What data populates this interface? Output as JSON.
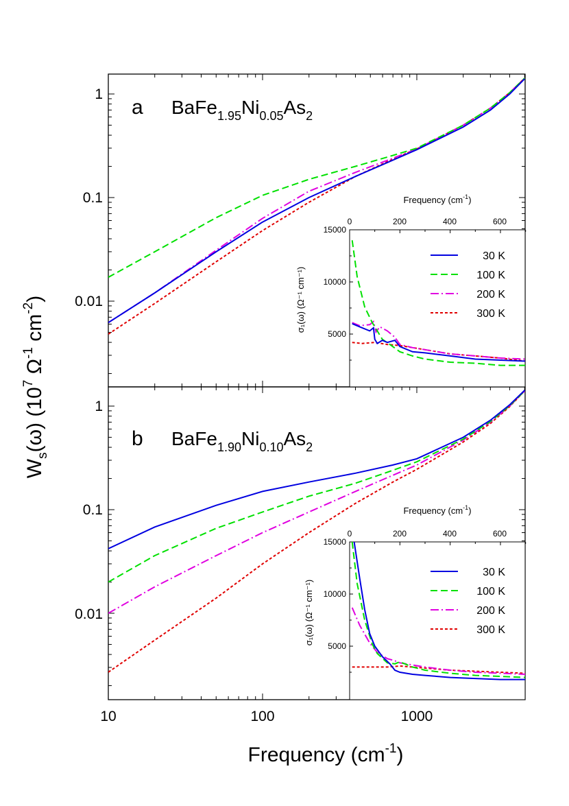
{
  "figure": {
    "xlabel": "Frequency (cm",
    "xlabel_sup": "-1",
    "xlabel_end": ")",
    "ylabel_parts": [
      "W",
      "s",
      "(ω) (10",
      "7",
      " Ω",
      "-1",
      " cm",
      "-2",
      ")"
    ],
    "xticks": [
      "10",
      "100",
      "1000"
    ],
    "yticks": [
      "0.01",
      "0.1",
      "1"
    ]
  },
  "legend": [
    {
      "label": "30 K",
      "color": "#0000e0",
      "dash": "solid"
    },
    {
      "label": "100 K",
      "color": "#00e000",
      "dash": "dashed"
    },
    {
      "label": "200 K",
      "color": "#e000e0",
      "dash": "dashdot"
    },
    {
      "label": "300 K",
      "color": "#e00000",
      "dash": "dotted"
    }
  ],
  "panels": [
    {
      "letter": "a",
      "formula": [
        "BaFe",
        "1.95",
        "Ni",
        "0.05",
        "As",
        "2"
      ],
      "inset": {
        "xlabel": "Frequency (cm",
        "xlabel_sup": "-1",
        "xlabel_end": ")",
        "ylabel": "σ₁(ω) (Ω⁻¹ cm⁻¹)",
        "xticks": [
          "0",
          "200",
          "400",
          "600"
        ],
        "yticks": [
          "5000",
          "10000",
          "15000"
        ]
      }
    },
    {
      "letter": "b",
      "formula": [
        "BaFe",
        "1.90",
        "Ni",
        "0.10",
        "As",
        "2"
      ],
      "inset": {
        "xlabel": "Frequency (cm",
        "xlabel_sup": "-1",
        "xlabel_end": ")",
        "ylabel": "σ₁(ω) (Ω⁻¹ cm⁻¹)",
        "xticks": [
          "0",
          "200",
          "400",
          "600"
        ],
        "yticks": [
          "5000",
          "10000",
          "15000"
        ]
      }
    }
  ],
  "chart_data": [
    {
      "type": "line",
      "panel": "a",
      "title": "BaFe1.95Ni0.05As2",
      "xlabel": "Frequency (cm-1)",
      "ylabel": "Ws(ω) (10^7 Ω-1 cm-2)",
      "xscale": "log",
      "yscale": "log",
      "xlim": [
        10,
        5000
      ],
      "ylim": [
        0.0017,
        1.6
      ],
      "series": [
        {
          "name": "30 K",
          "x": [
            10,
            20,
            50,
            100,
            200,
            400,
            700,
            1000,
            2000,
            3000,
            4000,
            5000
          ],
          "y": [
            0.0062,
            0.012,
            0.03,
            0.058,
            0.1,
            0.16,
            0.23,
            0.29,
            0.48,
            0.7,
            1.0,
            1.4
          ]
        },
        {
          "name": "100 K",
          "x": [
            10,
            20,
            50,
            100,
            200,
            400,
            700,
            1000,
            2000,
            3000,
            4000,
            5000
          ],
          "y": [
            0.017,
            0.03,
            0.064,
            0.105,
            0.15,
            0.2,
            0.255,
            0.3,
            0.5,
            0.73,
            1.03,
            1.42
          ]
        },
        {
          "name": "200 K",
          "x": [
            10,
            20,
            50,
            100,
            200,
            400,
            700,
            1000,
            2000,
            3000,
            4000,
            5000
          ],
          "y": [
            0.0062,
            0.012,
            0.031,
            0.063,
            0.115,
            0.175,
            0.24,
            0.295,
            0.5,
            0.73,
            1.03,
            1.42
          ]
        },
        {
          "name": "300 K",
          "x": [
            10,
            20,
            50,
            100,
            200,
            400,
            700,
            1000,
            2000,
            3000,
            4000,
            5000
          ],
          "y": [
            0.0048,
            0.0095,
            0.024,
            0.048,
            0.09,
            0.16,
            0.235,
            0.295,
            0.5,
            0.73,
            1.03,
            1.42
          ]
        }
      ]
    },
    {
      "type": "line",
      "panel": "a inset",
      "xlabel": "Frequency (cm-1)",
      "ylabel": "σ1(ω) (Ω-1 cm-1)",
      "xlim": [
        0,
        700
      ],
      "ylim": [
        0,
        15000
      ],
      "series": [
        {
          "name": "30 K",
          "x": [
            10,
            40,
            80,
            95,
            100,
            110,
            130,
            150,
            180,
            200,
            250,
            300,
            400,
            500,
            600,
            700
          ],
          "y": [
            6000,
            5700,
            5300,
            5600,
            4500,
            4100,
            4400,
            4200,
            4400,
            3800,
            3300,
            3200,
            2900,
            2600,
            2500,
            2400
          ]
        },
        {
          "name": "100 K",
          "x": [
            10,
            30,
            60,
            90,
            110,
            130,
            160,
            200,
            250,
            300,
            400,
            500,
            600,
            700
          ],
          "y": [
            14000,
            10500,
            7600,
            6100,
            5300,
            4500,
            4000,
            3300,
            2900,
            2600,
            2300,
            2200,
            2000,
            2000
          ]
        },
        {
          "name": "200 K",
          "x": [
            10,
            40,
            80,
            95,
            105,
            120,
            150,
            180,
            200,
            250,
            300,
            400,
            500,
            600,
            700
          ],
          "y": [
            6100,
            5800,
            5900,
            6200,
            5200,
            5700,
            5300,
            4700,
            4000,
            3700,
            3500,
            3100,
            2900,
            2700,
            2600
          ]
        },
        {
          "name": "300 K",
          "x": [
            10,
            50,
            100,
            150,
            200,
            300,
            400,
            500,
            600,
            700
          ],
          "y": [
            4200,
            4100,
            4200,
            4000,
            3900,
            3500,
            3100,
            2900,
            2700,
            2400
          ]
        }
      ]
    },
    {
      "type": "line",
      "panel": "b",
      "title": "BaFe1.90Ni0.10As2",
      "xlabel": "Frequency (cm-1)",
      "ylabel": "Ws(ω) (10^7 Ω-1 cm-2)",
      "xscale": "log",
      "yscale": "log",
      "xlim": [
        10,
        5000
      ],
      "ylim": [
        0.0017,
        1.6
      ],
      "series": [
        {
          "name": "30 K",
          "x": [
            10,
            20,
            50,
            100,
            200,
            400,
            700,
            1000,
            2000,
            3000,
            4000,
            5000
          ],
          "y": [
            0.042,
            0.068,
            0.11,
            0.15,
            0.185,
            0.225,
            0.27,
            0.31,
            0.5,
            0.73,
            1.03,
            1.42
          ]
        },
        {
          "name": "100 K",
          "x": [
            10,
            20,
            50,
            100,
            200,
            400,
            700,
            1000,
            2000,
            3000,
            4000,
            5000
          ],
          "y": [
            0.02,
            0.036,
            0.066,
            0.095,
            0.135,
            0.18,
            0.24,
            0.29,
            0.48,
            0.71,
            1.01,
            1.4
          ]
        },
        {
          "name": "200 K",
          "x": [
            10,
            20,
            50,
            100,
            200,
            400,
            700,
            1000,
            2000,
            3000,
            4000,
            5000
          ],
          "y": [
            0.01,
            0.018,
            0.036,
            0.06,
            0.095,
            0.15,
            0.215,
            0.27,
            0.47,
            0.7,
            1.0,
            1.4
          ]
        },
        {
          "name": "300 K",
          "x": [
            10,
            20,
            50,
            100,
            200,
            400,
            700,
            1000,
            2000,
            3000,
            4000,
            5000
          ],
          "y": [
            0.0027,
            0.0055,
            0.014,
            0.03,
            0.06,
            0.115,
            0.185,
            0.245,
            0.45,
            0.68,
            0.99,
            1.4
          ]
        }
      ]
    },
    {
      "type": "line",
      "panel": "b inset",
      "xlabel": "Frequency (cm-1)",
      "ylabel": "σ1(ω) (Ω-1 cm-1)",
      "xlim": [
        0,
        700
      ],
      "ylim": [
        0,
        15000
      ],
      "series": [
        {
          "name": "30 K",
          "x": [
            18,
            40,
            60,
            80,
            100,
            130,
            160,
            180,
            200,
            250,
            300,
            400,
            500,
            600,
            700
          ],
          "y": [
            15000,
            11500,
            8500,
            6200,
            5000,
            4000,
            3300,
            2700,
            2500,
            2300,
            2200,
            2000,
            1900,
            1800,
            1800
          ]
        },
        {
          "name": "100 K",
          "x": [
            10,
            30,
            60,
            90,
            110,
            150,
            180,
            200,
            250,
            300,
            400,
            500,
            600,
            700
          ],
          "y": [
            15000,
            11000,
            7500,
            5200,
            4300,
            3400,
            3300,
            3500,
            3000,
            2700,
            2400,
            2200,
            2100,
            2000
          ]
        },
        {
          "name": "200 K",
          "x": [
            10,
            40,
            80,
            110,
            150,
            180,
            200,
            250,
            300,
            400,
            500,
            600,
            700
          ],
          "y": [
            8700,
            7000,
            5300,
            4400,
            3800,
            3600,
            3400,
            3200,
            3000,
            2700,
            2500,
            2400,
            2300
          ]
        },
        {
          "name": "300 K",
          "x": [
            10,
            50,
            100,
            150,
            200,
            300,
            400,
            500,
            600,
            700
          ],
          "y": [
            3000,
            3000,
            3000,
            3000,
            3100,
            2900,
            2700,
            2600,
            2500,
            2400
          ]
        }
      ]
    }
  ]
}
